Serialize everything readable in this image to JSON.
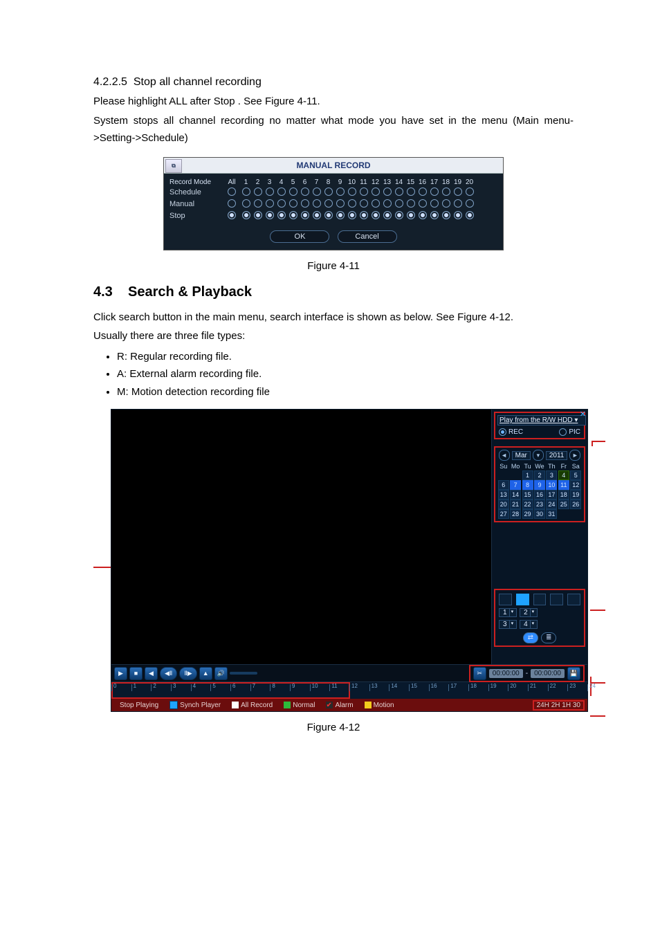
{
  "section_425": {
    "num": "4.2.2.5",
    "title": "Stop all channel recording",
    "p1": "Please highlight  ALL  after  Stop . See Figure 4-11.",
    "p2": "System stops all channel recording no matter what mode you have set in the menu (Main menu->Setting->Schedule)"
  },
  "manrec": {
    "title": "MANUAL RECORD",
    "labels": {
      "record_mode": "Record Mode",
      "schedule": "Schedule",
      "manual": "Manual",
      "stop": "Stop",
      "all": "All"
    },
    "channels": [
      1,
      2,
      3,
      4,
      5,
      6,
      7,
      8,
      9,
      10,
      11,
      12,
      13,
      14,
      15,
      16,
      17,
      18,
      19,
      20
    ],
    "rows": [
      {
        "name": "Schedule",
        "all": false,
        "on": false
      },
      {
        "name": "Manual",
        "all": false,
        "on": false
      },
      {
        "name": "Stop",
        "all": true,
        "on": true
      }
    ],
    "ok": "OK",
    "cancel": "Cancel"
  },
  "fig411": "Figure 4-11",
  "section_43": {
    "num": "4.3",
    "title": "Search & Playback"
  },
  "para43a": "Click search button in the main menu, search interface is shown as below. See Figure 4-12.",
  "para43b": "Usually there are three file types:",
  "types": [
    "R: Regular recording file.",
    "A: External alarm recording file.",
    "M: Motion detection recording file"
  ],
  "playback": {
    "source_label": "Play from the R/W HDD",
    "rec": "REC",
    "pic": "PIC",
    "cal": {
      "month": "Mar",
      "year": "2011",
      "dow": [
        "Su",
        "Mo",
        "Tu",
        "We",
        "Th",
        "Fr",
        "Sa"
      ],
      "days": [
        [
          "",
          "",
          "1",
          "2",
          "3",
          "4",
          "5"
        ],
        [
          "6",
          "7",
          "8",
          "9",
          "10",
          "11",
          "12"
        ],
        [
          "13",
          "14",
          "15",
          "16",
          "17",
          "18",
          "19"
        ],
        [
          "20",
          "21",
          "22",
          "23",
          "24",
          "25",
          "26"
        ],
        [
          "27",
          "28",
          "29",
          "30",
          "31",
          "",
          ""
        ]
      ],
      "rec_days": [
        7,
        8,
        9,
        10,
        11
      ],
      "sel_days": [
        4
      ],
      "disabled_days": [
        1,
        2,
        3,
        5
      ]
    },
    "channels": [
      "1",
      "2",
      "3",
      "4"
    ],
    "time_text_a": "00:00:00",
    "time_text_b": "00:00:00",
    "status": {
      "stop": "Stop Playing",
      "sync": "Synch Player",
      "all": "All Record",
      "normal": "Normal",
      "alarm": "Alarm",
      "motion": "Motion",
      "zoom": "24H  2H  1H  30"
    },
    "colors": {
      "all": "#ffffff",
      "normal": "#2dbb3a",
      "alarm": "#ff2e2e",
      "motion": "#f3cc1d"
    }
  },
  "fig412": "Figure 4-12"
}
